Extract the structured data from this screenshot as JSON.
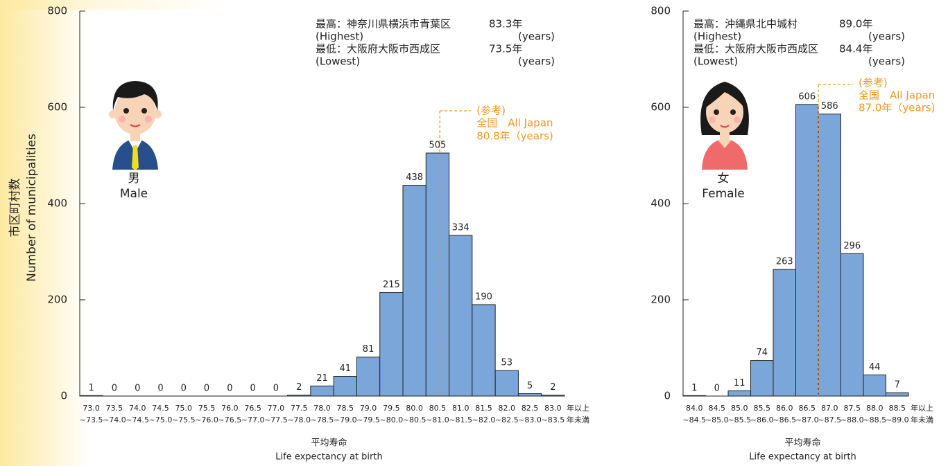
{
  "chart_data": [
    {
      "type": "bar",
      "y_label": [
        "市区町村数",
        "Number of municipalities"
      ],
      "figure_label": [
        "男",
        "Male"
      ],
      "categories": [
        "73.0",
        "73.5",
        "74.0",
        "74.5",
        "75.0",
        "75.5",
        "76.0",
        "76.5",
        "77.0",
        "77.5",
        "78.0",
        "78.5",
        "79.0",
        "79.5",
        "80.0",
        "80.5",
        "81.0",
        "81.5",
        "82.0",
        "82.5",
        "83.0"
      ],
      "categories_upper": [
        "~73.5",
        "~74.0",
        "~74.5",
        "~75.0",
        "~75.5",
        "~76.0",
        "~76.5",
        "~77.0",
        "~77.5",
        "~78.0",
        "~78.5",
        "~79.0",
        "~79.5",
        "~80.0",
        "~80.5",
        "~81.0",
        "~81.5",
        "~82.0",
        "~82.5",
        "~83.0",
        "~83.5"
      ],
      "x_unit": [
        "年以上",
        "年未満"
      ],
      "values": [
        1,
        0,
        0,
        0,
        0,
        0,
        0,
        0,
        0,
        2,
        21,
        41,
        81,
        215,
        438,
        505,
        334,
        190,
        53,
        5,
        2
      ],
      "color": "#7ba6da",
      "xlim": [
        73.0,
        83.5
      ],
      "ylim": [
        0,
        800
      ],
      "yticks": [
        0,
        200,
        400,
        600,
        800
      ],
      "x_label": [
        "平均寿命",
        "Life expectancy at birth"
      ],
      "notes": [
        {
          "left": "最高：神奈川県横浜市青葉区",
          "right": "83.3年"
        },
        {
          "left": "(Highest)",
          "right": "(years)"
        },
        {
          "left": "最低：大阪府大阪市西成区",
          "right": "73.5年"
        },
        {
          "left": "(Lowest)",
          "right": "(years)"
        }
      ],
      "reference": {
        "value": 80.8,
        "label": [
          "(参考)",
          "全国　All Japan",
          "80.8年（years)"
        ]
      }
    },
    {
      "type": "bar",
      "figure_label": [
        "女",
        "Female"
      ],
      "categories": [
        "84.0",
        "84.5",
        "85.0",
        "85.5",
        "86.0",
        "86.5",
        "87.0",
        "87.5",
        "88.0",
        "88.5"
      ],
      "categories_upper": [
        "~84.5",
        "~85.0",
        "~85.5",
        "~86.0",
        "~86.5",
        "~87.0",
        "~87.5",
        "~88.0",
        "~88.5",
        "~89.0"
      ],
      "x_unit": [
        "年以上",
        "年未満"
      ],
      "values": [
        1,
        0,
        11,
        74,
        263,
        606,
        586,
        296,
        44,
        7
      ],
      "color": "#7ba6da",
      "xlim": [
        84.0,
        89.0
      ],
      "ylim": [
        0,
        800
      ],
      "yticks": [
        0,
        200,
        400,
        600,
        800
      ],
      "x_label": [
        "平均寿命",
        "Life expectancy at birth"
      ],
      "notes": [
        {
          "left": "最高：沖縄県北中城村",
          "right": "89.0年"
        },
        {
          "left": "(Highest)",
          "right": "(years)"
        },
        {
          "left": "最低：大阪府大阪市西成区",
          "right": "84.4年"
        },
        {
          "left": "(Lowest)",
          "right": "(years)"
        }
      ],
      "reference": {
        "value": 87.0,
        "label": [
          "(参考)",
          "全国　All Japan",
          "87.0年（years)"
        ]
      }
    }
  ]
}
